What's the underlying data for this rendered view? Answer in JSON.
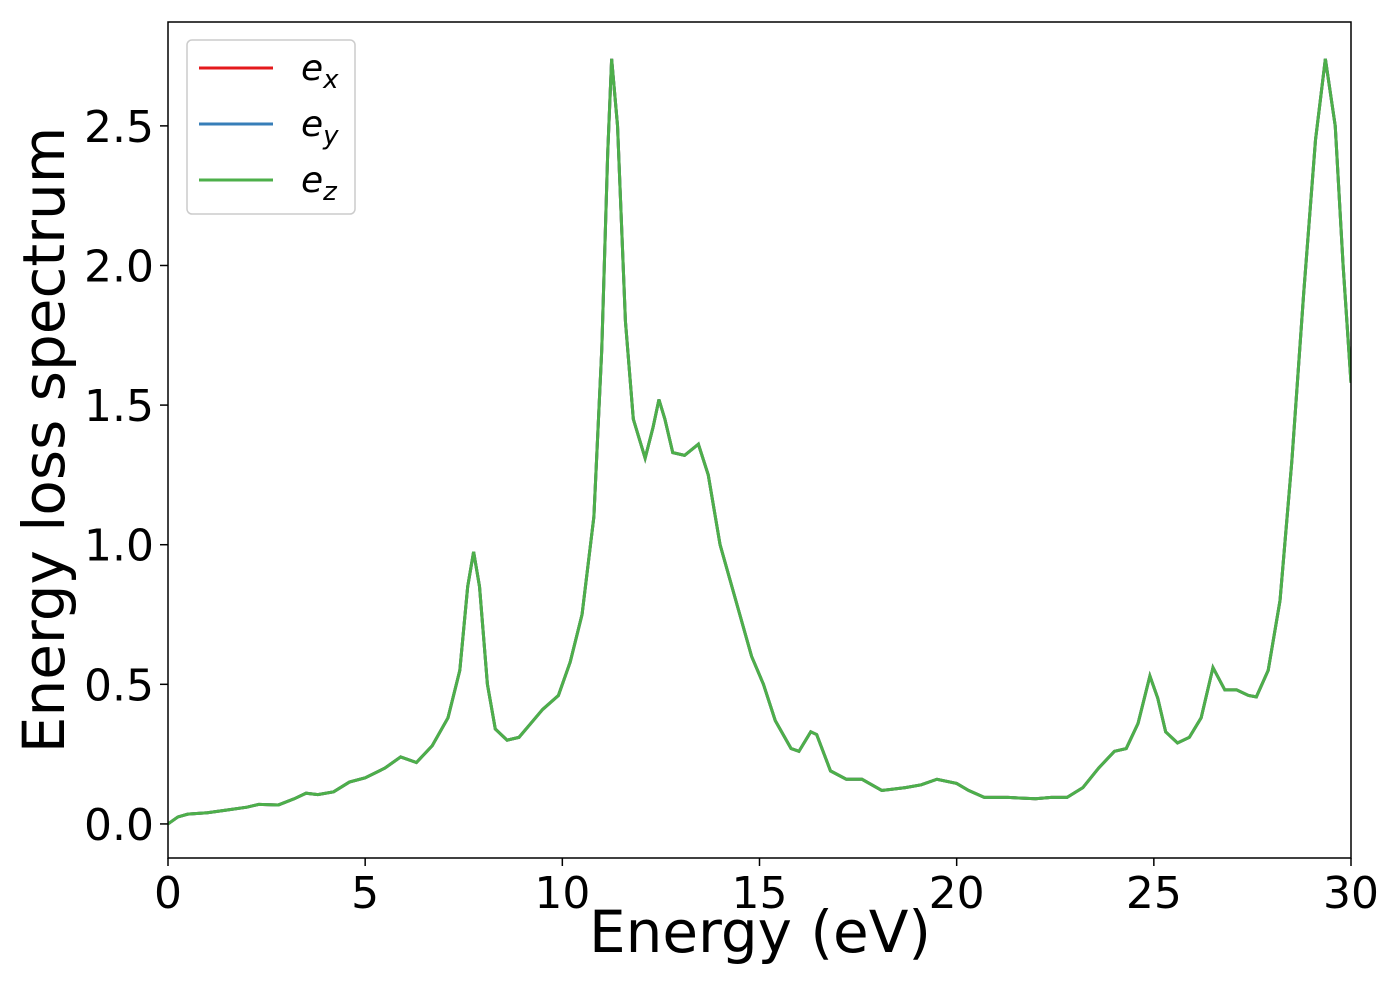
{
  "chart_data": {
    "type": "line",
    "xlabel": "Energy (eV)",
    "ylabel": "Energy loss spectrum",
    "x": [
      0,
      0.25,
      0.5,
      1,
      1.5,
      2,
      2.3,
      2.8,
      3.2,
      3.5,
      3.8,
      4.2,
      4.6,
      5,
      5.5,
      5.9,
      6.3,
      6.7,
      7.1,
      7.4,
      7.6,
      7.75,
      7.9,
      8.1,
      8.3,
      8.6,
      8.9,
      9.2,
      9.5,
      9.9,
      10.2,
      10.5,
      10.8,
      11.0,
      11.15,
      11.25,
      11.4,
      11.6,
      11.8,
      12.1,
      12.3,
      12.45,
      12.6,
      12.8,
      13.1,
      13.45,
      13.7,
      14,
      14.5,
      14.8,
      15.1,
      15.4,
      15.8,
      16.0,
      16.3,
      16.45,
      16.8,
      17.2,
      17.6,
      18.1,
      18.7,
      19.1,
      19.5,
      20.0,
      20.3,
      20.7,
      21.3,
      22.0,
      22.4,
      22.8,
      23.2,
      23.6,
      24.0,
      24.3,
      24.6,
      24.9,
      25.1,
      25.3,
      25.6,
      25.9,
      26.2,
      26.5,
      26.8,
      27.1,
      27.4,
      27.6,
      27.9,
      28.2,
      28.5,
      28.8,
      29.1,
      29.35,
      29.6,
      29.8,
      30.0
    ],
    "series": [
      {
        "name": "e_x",
        "color": "#e41a1c",
        "values": [
          0,
          0.025,
          0.035,
          0.04,
          0.05,
          0.06,
          0.07,
          0.068,
          0.09,
          0.11,
          0.105,
          0.115,
          0.15,
          0.165,
          0.2,
          0.24,
          0.22,
          0.28,
          0.38,
          0.55,
          0.85,
          0.975,
          0.85,
          0.5,
          0.34,
          0.3,
          0.31,
          0.36,
          0.41,
          0.46,
          0.58,
          0.75,
          1.1,
          1.7,
          2.4,
          2.74,
          2.5,
          1.8,
          1.45,
          1.31,
          1.42,
          1.52,
          1.45,
          1.33,
          1.32,
          1.36,
          1.25,
          1.0,
          0.75,
          0.6,
          0.5,
          0.37,
          0.27,
          0.26,
          0.33,
          0.32,
          0.19,
          0.16,
          0.16,
          0.12,
          0.13,
          0.14,
          0.16,
          0.145,
          0.12,
          0.095,
          0.095,
          0.09,
          0.095,
          0.095,
          0.13,
          0.2,
          0.26,
          0.27,
          0.36,
          0.53,
          0.45,
          0.33,
          0.29,
          0.31,
          0.38,
          0.56,
          0.48,
          0.48,
          0.46,
          0.455,
          0.55,
          0.8,
          1.3,
          1.9,
          2.45,
          2.74,
          2.5,
          2.0,
          1.58
        ]
      },
      {
        "name": "e_y",
        "color": "#377eb8",
        "values": [
          0,
          0.025,
          0.035,
          0.04,
          0.05,
          0.06,
          0.07,
          0.068,
          0.09,
          0.11,
          0.105,
          0.115,
          0.15,
          0.165,
          0.2,
          0.24,
          0.22,
          0.28,
          0.38,
          0.55,
          0.85,
          0.975,
          0.85,
          0.5,
          0.34,
          0.3,
          0.31,
          0.36,
          0.41,
          0.46,
          0.58,
          0.75,
          1.1,
          1.7,
          2.4,
          2.74,
          2.5,
          1.8,
          1.45,
          1.31,
          1.42,
          1.52,
          1.45,
          1.33,
          1.32,
          1.36,
          1.25,
          1.0,
          0.75,
          0.6,
          0.5,
          0.37,
          0.27,
          0.26,
          0.33,
          0.32,
          0.19,
          0.16,
          0.16,
          0.12,
          0.13,
          0.14,
          0.16,
          0.145,
          0.12,
          0.095,
          0.095,
          0.09,
          0.095,
          0.095,
          0.13,
          0.2,
          0.26,
          0.27,
          0.36,
          0.53,
          0.45,
          0.33,
          0.29,
          0.31,
          0.38,
          0.56,
          0.48,
          0.48,
          0.46,
          0.455,
          0.55,
          0.8,
          1.3,
          1.9,
          2.45,
          2.74,
          2.5,
          2.0,
          1.58
        ]
      },
      {
        "name": "e_z",
        "color": "#4daf4a",
        "values": [
          0,
          0.025,
          0.035,
          0.04,
          0.05,
          0.06,
          0.07,
          0.068,
          0.09,
          0.11,
          0.105,
          0.115,
          0.15,
          0.165,
          0.2,
          0.24,
          0.22,
          0.28,
          0.38,
          0.55,
          0.85,
          0.975,
          0.85,
          0.5,
          0.34,
          0.3,
          0.31,
          0.36,
          0.41,
          0.46,
          0.58,
          0.75,
          1.1,
          1.7,
          2.4,
          2.74,
          2.5,
          1.8,
          1.45,
          1.31,
          1.42,
          1.52,
          1.45,
          1.33,
          1.32,
          1.36,
          1.25,
          1.0,
          0.75,
          0.6,
          0.5,
          0.37,
          0.27,
          0.26,
          0.33,
          0.32,
          0.19,
          0.16,
          0.16,
          0.12,
          0.13,
          0.14,
          0.16,
          0.145,
          0.12,
          0.095,
          0.095,
          0.09,
          0.095,
          0.095,
          0.13,
          0.2,
          0.26,
          0.27,
          0.36,
          0.53,
          0.45,
          0.33,
          0.29,
          0.31,
          0.38,
          0.56,
          0.48,
          0.48,
          0.46,
          0.455,
          0.55,
          0.8,
          1.3,
          1.9,
          2.45,
          2.74,
          2.5,
          2.0,
          1.58
        ]
      }
    ],
    "xlim": [
      0,
      30
    ],
    "xticks": [
      0,
      5,
      10,
      15,
      20,
      25,
      30
    ],
    "ylim": [
      -0.122,
      2.872
    ],
    "yticks": [
      {
        "value": 0,
        "label": "0.0"
      },
      0.5,
      {
        "value": 1,
        "label": "1.0"
      },
      1.5,
      {
        "value": 2,
        "label": "2.0"
      },
      2.5
    ],
    "grid": false,
    "legend": "upper left"
  }
}
